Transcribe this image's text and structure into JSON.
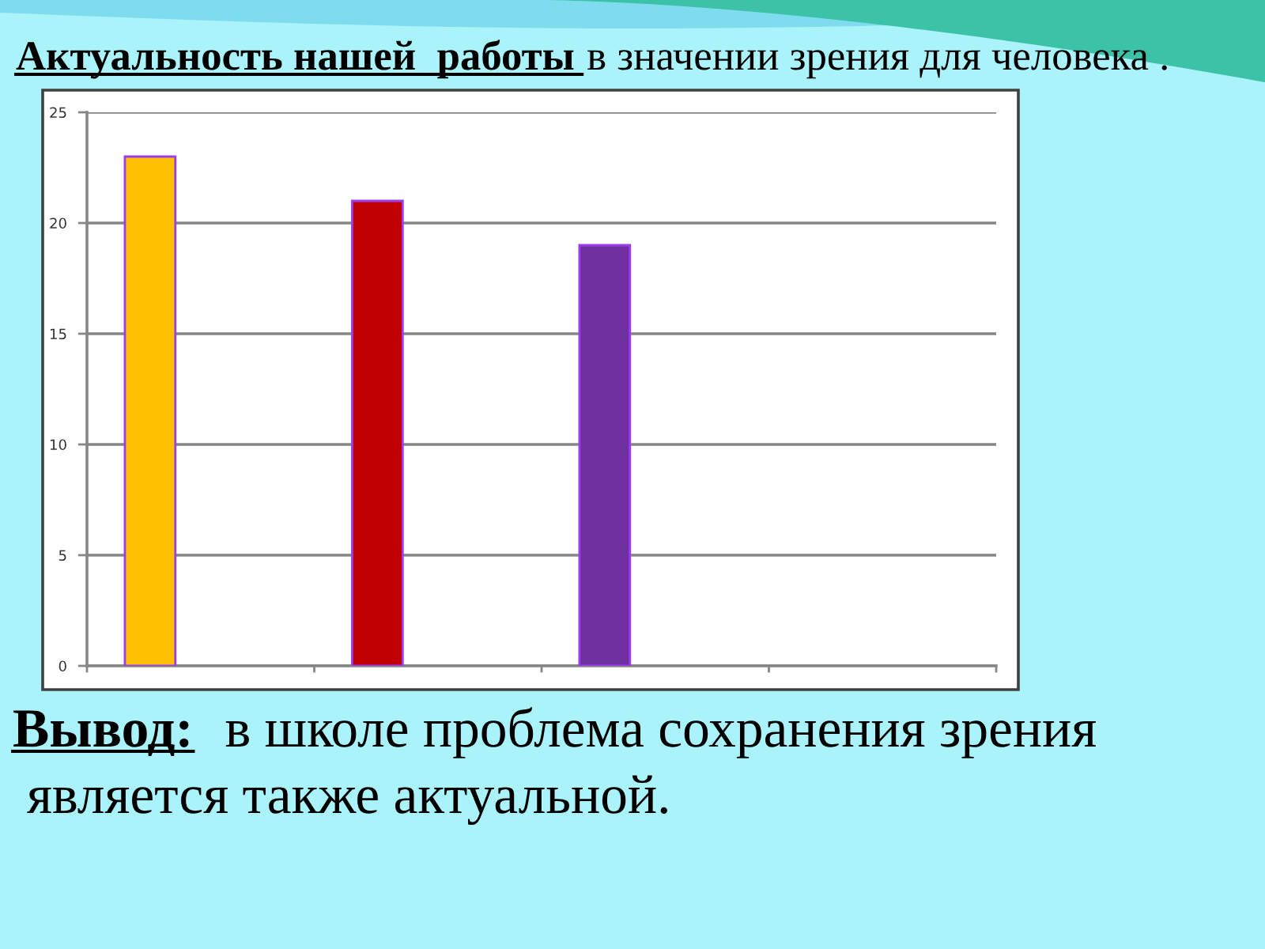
{
  "chart_data": {
    "type": "bar",
    "title": "Актуальность нашей  работы",
    "subtitle": "в значении зрения для человека .",
    "annotations": [
      "Вывод:",
      "в школе проблема сохранения зрения",
      "является также актуальной."
    ],
    "categories": [
      null,
      null,
      null,
      null
    ],
    "values": [
      23,
      21,
      19,
      null
    ],
    "colors": [
      "#ffc000",
      "#c00000",
      "#7030a0",
      null
    ],
    "ylim": [
      0,
      25
    ],
    "yticks": [
      0,
      5,
      10,
      15,
      20,
      25
    ],
    "grid": "y"
  }
}
